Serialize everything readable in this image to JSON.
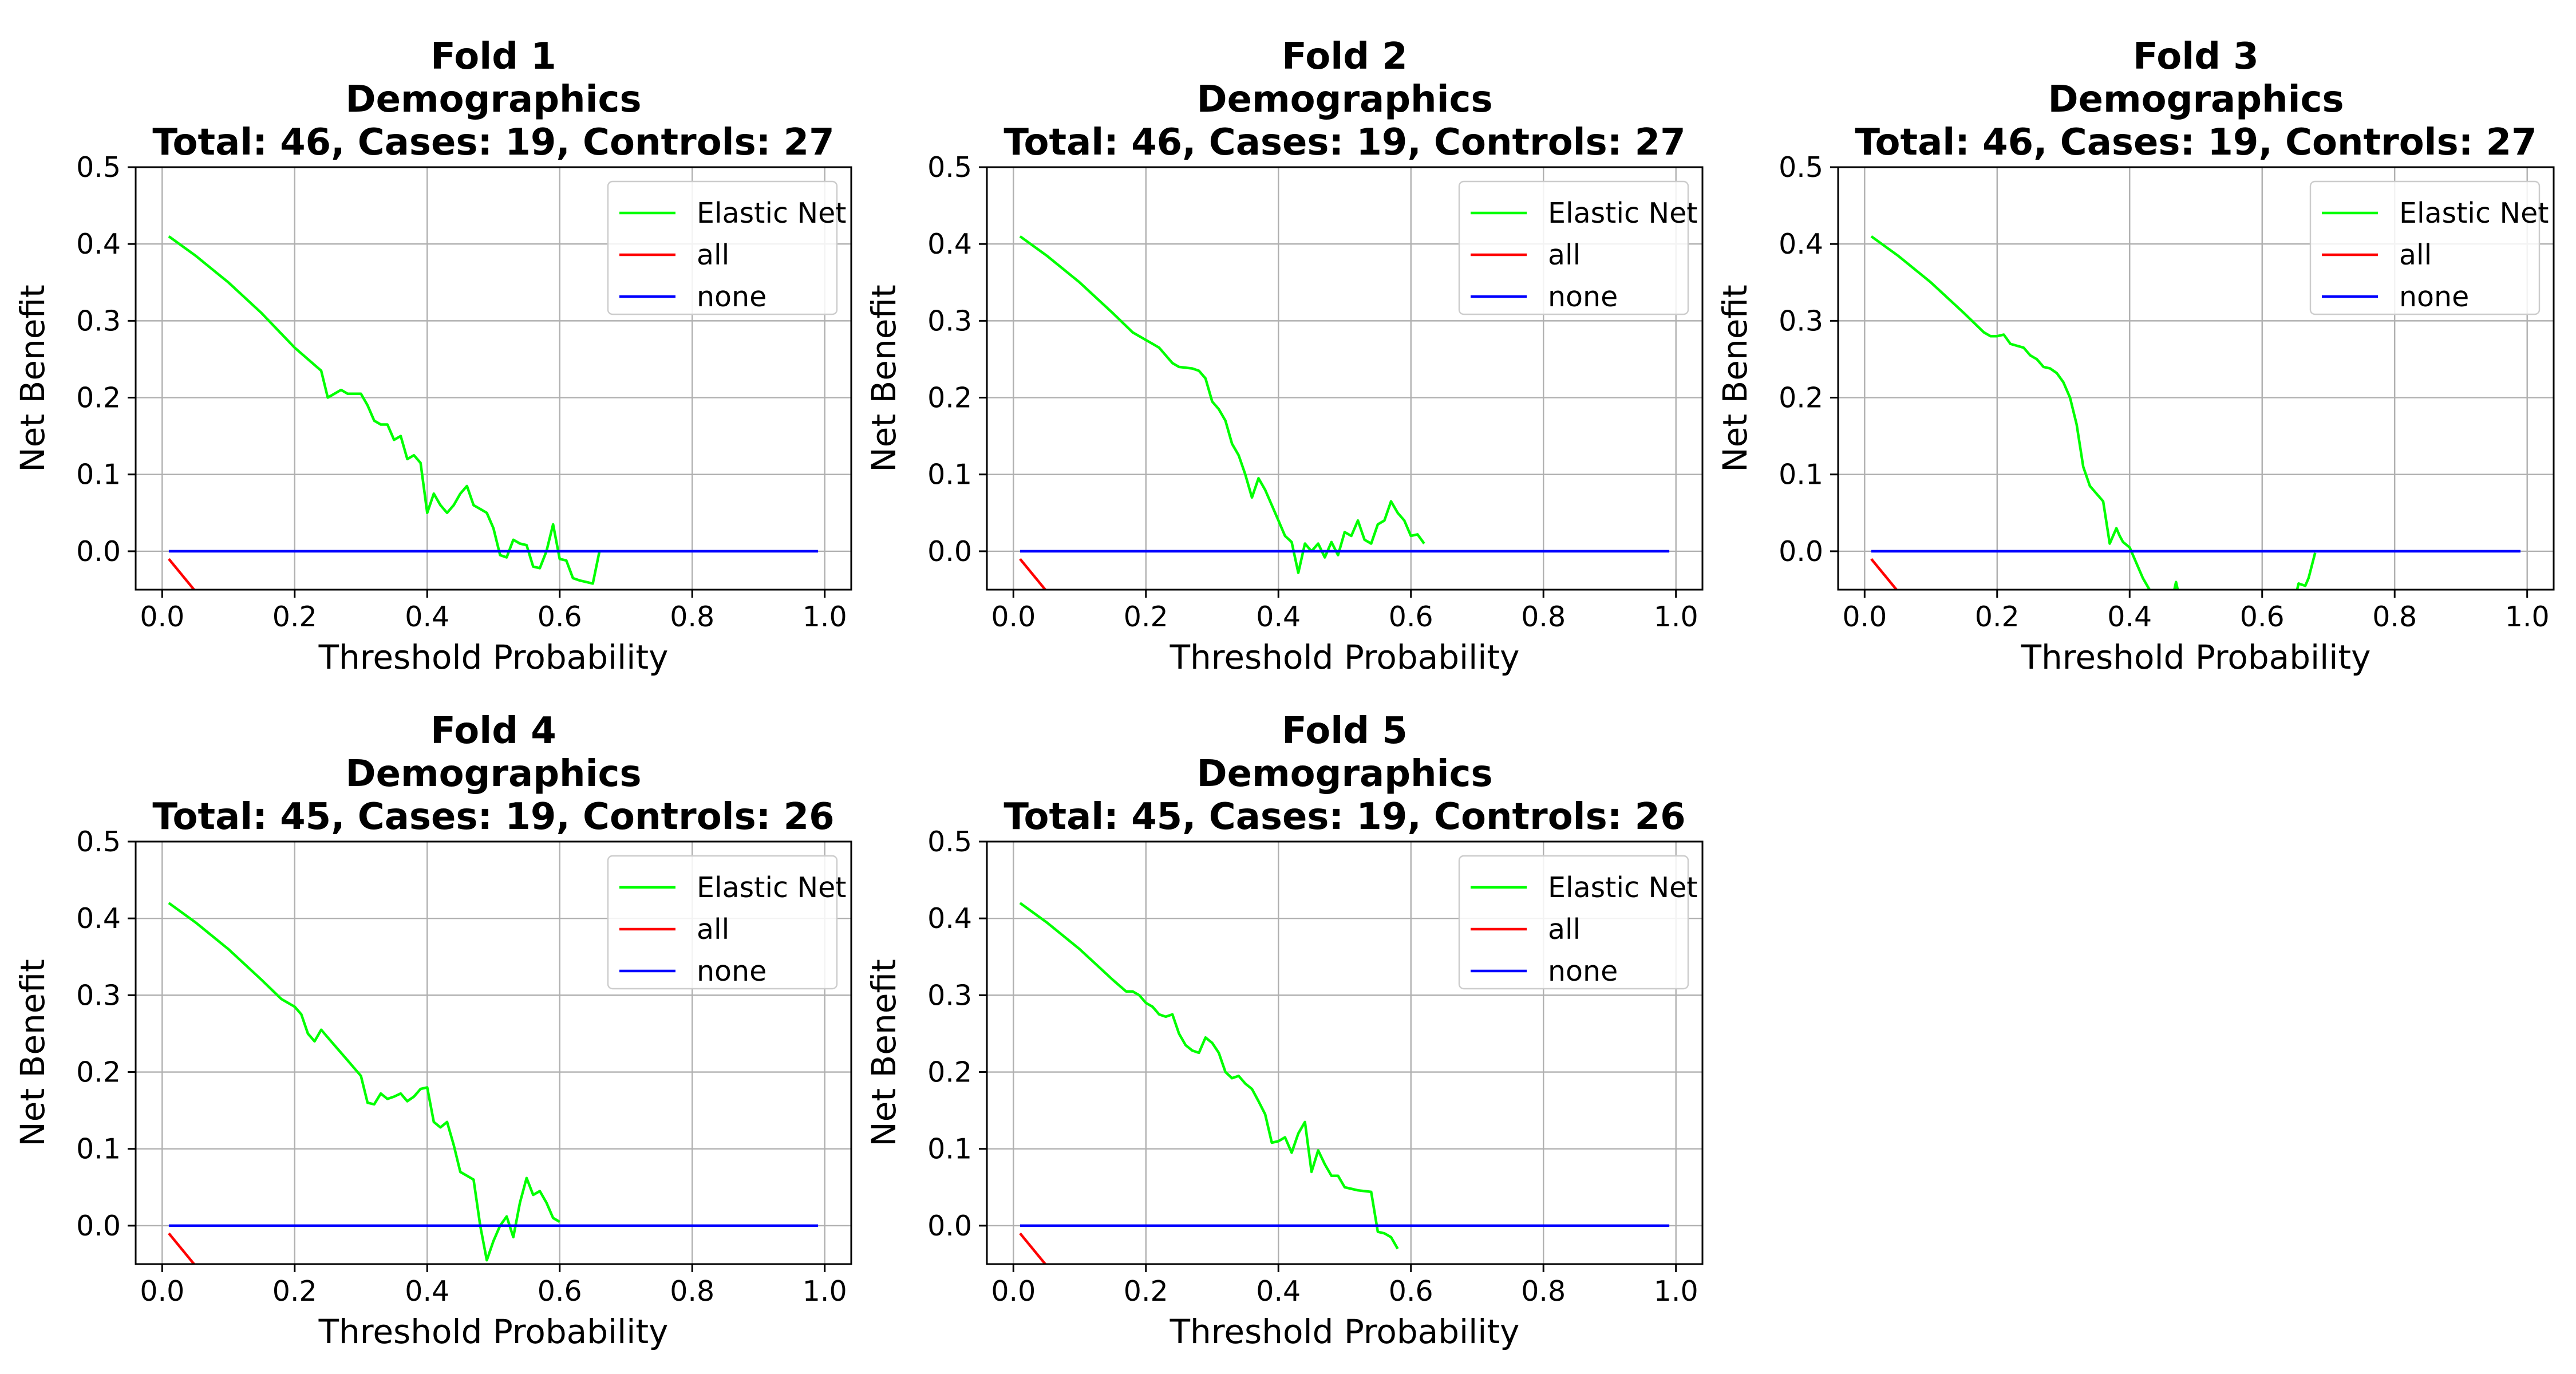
{
  "chart_data": [
    {
      "type": "line",
      "title_lines": [
        "Fold 1",
        "Demographics",
        "Total: 46, Cases: 19, Controls: 27"
      ],
      "xlabel": "Threshold Probability",
      "ylabel": "Net Benefit",
      "xlim": [
        -0.04,
        1.04
      ],
      "ylim": [
        -0.05,
        0.5
      ],
      "xticks": [
        "0.0",
        "0.2",
        "0.4",
        "0.6",
        "0.8",
        "1.0"
      ],
      "yticks": [
        "0.0",
        "0.1",
        "0.2",
        "0.3",
        "0.4",
        "0.5"
      ],
      "grid": true,
      "legend_position": "top-right",
      "series": [
        {
          "name": "Elastic Net",
          "color": "#00ff00",
          "x": [
            0.01,
            0.05,
            0.1,
            0.15,
            0.2,
            0.24,
            0.25,
            0.27,
            0.28,
            0.3,
            0.31,
            0.32,
            0.33,
            0.34,
            0.35,
            0.36,
            0.37,
            0.38,
            0.39,
            0.4,
            0.41,
            0.42,
            0.43,
            0.44,
            0.45,
            0.46,
            0.47,
            0.48,
            0.49,
            0.5,
            0.51,
            0.52,
            0.53,
            0.54,
            0.55,
            0.56,
            0.57,
            0.58,
            0.59,
            0.6,
            0.61,
            0.62,
            0.63,
            0.64,
            0.65,
            0.66
          ],
          "y": [
            0.41,
            0.385,
            0.35,
            0.31,
            0.265,
            0.235,
            0.2,
            0.21,
            0.205,
            0.205,
            0.19,
            0.17,
            0.165,
            0.165,
            0.145,
            0.15,
            0.12,
            0.125,
            0.115,
            0.05,
            0.075,
            0.06,
            0.05,
            0.06,
            0.075,
            0.085,
            0.06,
            0.055,
            0.05,
            0.03,
            -0.005,
            -0.008,
            0.015,
            0.01,
            0.008,
            -0.02,
            -0.022,
            0.0,
            0.035,
            -0.01,
            -0.012,
            -0.035,
            -0.038,
            -0.04,
            -0.042,
            0.0
          ]
        },
        {
          "name": "all",
          "color": "#ff0000",
          "x": [
            0.01,
            0.05
          ],
          "y": [
            -0.01,
            -0.052
          ]
        },
        {
          "name": "none",
          "color": "#0000ff",
          "x": [
            0.01,
            0.99
          ],
          "y": [
            0.0,
            0.0
          ]
        }
      ]
    },
    {
      "type": "line",
      "title_lines": [
        "Fold 2",
        "Demographics",
        "Total: 46, Cases: 19, Controls: 27"
      ],
      "xlabel": "Threshold Probability",
      "ylabel": "Net Benefit",
      "xlim": [
        -0.04,
        1.04
      ],
      "ylim": [
        -0.05,
        0.5
      ],
      "xticks": [
        "0.0",
        "0.2",
        "0.4",
        "0.6",
        "0.8",
        "1.0"
      ],
      "yticks": [
        "0.0",
        "0.1",
        "0.2",
        "0.3",
        "0.4",
        "0.5"
      ],
      "grid": true,
      "legend_position": "top-right",
      "series": [
        {
          "name": "Elastic Net",
          "color": "#00ff00",
          "x": [
            0.01,
            0.05,
            0.1,
            0.15,
            0.18,
            0.2,
            0.21,
            0.22,
            0.24,
            0.25,
            0.27,
            0.28,
            0.29,
            0.3,
            0.31,
            0.32,
            0.33,
            0.34,
            0.35,
            0.36,
            0.37,
            0.38,
            0.39,
            0.4,
            0.41,
            0.42,
            0.43,
            0.44,
            0.45,
            0.46,
            0.47,
            0.48,
            0.49,
            0.5,
            0.51,
            0.52,
            0.53,
            0.54,
            0.55,
            0.56,
            0.57,
            0.58,
            0.59,
            0.6,
            0.61,
            0.62
          ],
          "y": [
            0.41,
            0.385,
            0.35,
            0.31,
            0.285,
            0.275,
            0.27,
            0.265,
            0.245,
            0.24,
            0.238,
            0.235,
            0.225,
            0.195,
            0.185,
            0.17,
            0.14,
            0.125,
            0.1,
            0.07,
            0.095,
            0.08,
            0.06,
            0.04,
            0.02,
            0.012,
            -0.028,
            0.01,
            0.0,
            0.01,
            -0.008,
            0.012,
            -0.005,
            0.025,
            0.02,
            0.04,
            0.015,
            0.01,
            0.035,
            0.04,
            0.065,
            0.05,
            0.04,
            0.02,
            0.022,
            0.01
          ]
        },
        {
          "name": "all",
          "color": "#ff0000",
          "x": [
            0.01,
            0.05
          ],
          "y": [
            -0.01,
            -0.052
          ]
        },
        {
          "name": "none",
          "color": "#0000ff",
          "x": [
            0.01,
            0.99
          ],
          "y": [
            0.0,
            0.0
          ]
        }
      ]
    },
    {
      "type": "line",
      "title_lines": [
        "Fold 3",
        "Demographics",
        "Total: 46, Cases: 19, Controls: 27"
      ],
      "xlabel": "Threshold Probability",
      "ylabel": "Net Benefit",
      "xlim": [
        -0.04,
        1.04
      ],
      "ylim": [
        -0.05,
        0.5
      ],
      "xticks": [
        "0.0",
        "0.2",
        "0.4",
        "0.6",
        "0.8",
        "1.0"
      ],
      "yticks": [
        "0.0",
        "0.1",
        "0.2",
        "0.3",
        "0.4",
        "0.5"
      ],
      "grid": true,
      "legend_position": "top-right",
      "series": [
        {
          "name": "Elastic Net",
          "color": "#00ff00",
          "x": [
            0.01,
            0.05,
            0.1,
            0.15,
            0.18,
            0.19,
            0.2,
            0.21,
            0.22,
            0.24,
            0.25,
            0.26,
            0.27,
            0.28,
            0.29,
            0.3,
            0.31,
            0.32,
            0.33,
            0.34,
            0.35,
            0.36,
            0.37,
            0.38,
            0.385,
            0.39,
            0.4,
            0.41,
            0.42,
            0.43,
            0.44
          ],
          "y": [
            0.41,
            0.385,
            0.35,
            0.31,
            0.285,
            0.28,
            0.28,
            0.282,
            0.27,
            0.265,
            0.255,
            0.25,
            0.24,
            0.238,
            0.232,
            0.22,
            0.2,
            0.165,
            0.11,
            0.085,
            0.075,
            0.065,
            0.01,
            0.03,
            0.02,
            0.012,
            0.005,
            -0.015,
            -0.035,
            -0.05,
            -0.06
          ]
        },
        {
          "name": "Elastic Net",
          "color": "#00ff00",
          "x": [
            0.465,
            0.47,
            0.475
          ],
          "y": [
            -0.06,
            -0.04,
            -0.06
          ]
        },
        {
          "name": "Elastic Net",
          "color": "#00ff00",
          "x": [
            0.65,
            0.655,
            0.665,
            0.67,
            0.68
          ],
          "y": [
            -0.06,
            -0.042,
            -0.045,
            -0.035,
            -0.002
          ]
        },
        {
          "name": "all",
          "color": "#ff0000",
          "x": [
            0.01,
            0.05
          ],
          "y": [
            -0.01,
            -0.052
          ]
        },
        {
          "name": "none",
          "color": "#0000ff",
          "x": [
            0.01,
            0.99
          ],
          "y": [
            0.0,
            0.0
          ]
        }
      ]
    },
    {
      "type": "line",
      "title_lines": [
        "Fold 4",
        "Demographics",
        "Total: 45, Cases: 19, Controls: 26"
      ],
      "xlabel": "Threshold Probability",
      "ylabel": "Net Benefit",
      "xlim": [
        -0.04,
        1.04
      ],
      "ylim": [
        -0.05,
        0.5
      ],
      "xticks": [
        "0.0",
        "0.2",
        "0.4",
        "0.6",
        "0.8",
        "1.0"
      ],
      "yticks": [
        "0.0",
        "0.1",
        "0.2",
        "0.3",
        "0.4",
        "0.5"
      ],
      "grid": true,
      "legend_position": "top-right",
      "series": [
        {
          "name": "Elastic Net",
          "color": "#00ff00",
          "x": [
            0.01,
            0.05,
            0.1,
            0.15,
            0.18,
            0.2,
            0.21,
            0.22,
            0.23,
            0.24,
            0.25,
            0.26,
            0.27,
            0.28,
            0.29,
            0.3,
            0.31,
            0.32,
            0.33,
            0.34,
            0.35,
            0.36,
            0.37,
            0.38,
            0.39,
            0.4,
            0.41,
            0.42,
            0.43,
            0.44,
            0.45,
            0.46,
            0.47,
            0.48,
            0.49,
            0.5,
            0.51,
            0.52,
            0.53,
            0.54,
            0.55,
            0.56,
            0.57,
            0.58,
            0.59,
            0.6
          ],
          "y": [
            0.42,
            0.395,
            0.36,
            0.32,
            0.295,
            0.285,
            0.275,
            0.25,
            0.24,
            0.255,
            0.245,
            0.235,
            0.225,
            0.215,
            0.205,
            0.195,
            0.16,
            0.158,
            0.172,
            0.165,
            0.168,
            0.172,
            0.162,
            0.168,
            0.178,
            0.18,
            0.135,
            0.128,
            0.135,
            0.105,
            0.07,
            0.065,
            0.06,
            0.0,
            -0.045,
            -0.02,
            0.0,
            0.012,
            -0.015,
            0.03,
            0.062,
            0.04,
            0.045,
            0.03,
            0.01,
            0.005
          ]
        },
        {
          "name": "all",
          "color": "#ff0000",
          "x": [
            0.01,
            0.05
          ],
          "y": [
            -0.01,
            -0.052
          ]
        },
        {
          "name": "none",
          "color": "#0000ff",
          "x": [
            0.01,
            0.99
          ],
          "y": [
            0.0,
            0.0
          ]
        }
      ]
    },
    {
      "type": "line",
      "title_lines": [
        "Fold 5",
        "Demographics",
        "Total: 45, Cases: 19, Controls: 26"
      ],
      "xlabel": "Threshold Probability",
      "ylabel": "Net Benefit",
      "xlim": [
        -0.04,
        1.04
      ],
      "ylim": [
        -0.05,
        0.5
      ],
      "xticks": [
        "0.0",
        "0.2",
        "0.4",
        "0.6",
        "0.8",
        "1.0"
      ],
      "yticks": [
        "0.0",
        "0.1",
        "0.2",
        "0.3",
        "0.4",
        "0.5"
      ],
      "grid": true,
      "legend_position": "top-right",
      "series": [
        {
          "name": "Elastic Net",
          "color": "#00ff00",
          "x": [
            0.01,
            0.05,
            0.1,
            0.15,
            0.17,
            0.18,
            0.19,
            0.2,
            0.21,
            0.22,
            0.23,
            0.24,
            0.25,
            0.26,
            0.27,
            0.28,
            0.29,
            0.3,
            0.31,
            0.32,
            0.33,
            0.34,
            0.35,
            0.36,
            0.37,
            0.38,
            0.39,
            0.4,
            0.41,
            0.42,
            0.43,
            0.44,
            0.45,
            0.46,
            0.47,
            0.48,
            0.49,
            0.5,
            0.51,
            0.52,
            0.53,
            0.54,
            0.55,
            0.56,
            0.57,
            0.58
          ],
          "y": [
            0.42,
            0.395,
            0.36,
            0.32,
            0.305,
            0.305,
            0.3,
            0.29,
            0.285,
            0.275,
            0.272,
            0.275,
            0.25,
            0.235,
            0.228,
            0.225,
            0.245,
            0.238,
            0.225,
            0.2,
            0.192,
            0.195,
            0.185,
            0.178,
            0.162,
            0.145,
            0.108,
            0.11,
            0.115,
            0.095,
            0.12,
            0.135,
            0.07,
            0.098,
            0.08,
            0.065,
            0.065,
            0.05,
            0.048,
            0.046,
            0.045,
            0.044,
            -0.008,
            -0.01,
            -0.015,
            -0.03
          ]
        },
        {
          "name": "all",
          "color": "#ff0000",
          "x": [
            0.01,
            0.05
          ],
          "y": [
            -0.01,
            -0.052
          ]
        },
        {
          "name": "none",
          "color": "#0000ff",
          "x": [
            0.01,
            0.99
          ],
          "y": [
            0.0,
            0.0
          ]
        }
      ]
    }
  ]
}
